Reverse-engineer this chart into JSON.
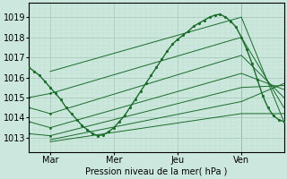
{
  "xlabel": "Pression niveau de la mer( hPa )",
  "background_color": "#cce8de",
  "grid_major_color": "#aaccbb",
  "grid_minor_color": "#bbddcc",
  "line_color": "#1a6b2a",
  "yticks": [
    1013,
    1014,
    1015,
    1016,
    1017,
    1018,
    1019
  ],
  "ylim": [
    1012.3,
    1019.7
  ],
  "xlim": [
    0,
    96
  ],
  "xtick_positions": [
    8,
    32,
    56,
    80
  ],
  "xtick_labels": [
    "Mar",
    "Mer",
    "Jeu",
    "Ven"
  ],
  "vline_x": 80,
  "main_line": {
    "points_x": [
      0,
      2,
      4,
      6,
      8,
      10,
      12,
      14,
      16,
      18,
      20,
      22,
      24,
      26,
      28,
      30,
      32,
      34,
      36,
      38,
      40,
      42,
      44,
      46,
      48,
      50,
      52,
      54,
      56,
      58,
      60,
      62,
      64,
      66,
      68,
      70,
      72,
      74,
      76,
      78,
      80,
      82,
      84,
      86,
      88,
      90,
      92,
      94,
      96
    ],
    "points_y": [
      1016.5,
      1016.3,
      1016.1,
      1015.8,
      1015.5,
      1015.2,
      1014.9,
      1014.5,
      1014.2,
      1013.9,
      1013.6,
      1013.4,
      1013.2,
      1013.1,
      1013.15,
      1013.3,
      1013.5,
      1013.8,
      1014.1,
      1014.5,
      1014.9,
      1015.3,
      1015.7,
      1016.1,
      1016.5,
      1016.9,
      1017.3,
      1017.65,
      1017.9,
      1018.1,
      1018.3,
      1018.55,
      1018.7,
      1018.85,
      1019.0,
      1019.1,
      1019.15,
      1019.0,
      1018.8,
      1018.5,
      1018.0,
      1017.4,
      1016.7,
      1015.9,
      1015.1,
      1014.5,
      1014.1,
      1013.9,
      1013.8
    ]
  },
  "fan_lines": [
    {
      "x": [
        8,
        80,
        96
      ],
      "y": [
        1016.3,
        1019.0,
        1013.8
      ]
    },
    {
      "x": [
        8,
        80,
        96
      ],
      "y": [
        1015.2,
        1018.0,
        1014.5
      ]
    },
    {
      "x": [
        8,
        80,
        96
      ],
      "y": [
        1014.2,
        1017.1,
        1015.0
      ]
    },
    {
      "x": [
        8,
        80,
        96
      ],
      "y": [
        1013.5,
        1016.2,
        1015.4
      ]
    },
    {
      "x": [
        8,
        80,
        96
      ],
      "y": [
        1013.1,
        1015.5,
        1015.6
      ]
    },
    {
      "x": [
        8,
        80,
        96
      ],
      "y": [
        1012.9,
        1014.8,
        1015.7
      ]
    },
    {
      "x": [
        8,
        80,
        96
      ],
      "y": [
        1012.8,
        1014.2,
        1014.2
      ]
    }
  ],
  "extra_dotted_lines": [
    {
      "x": [
        0,
        8
      ],
      "y": [
        1015.0,
        1015.2
      ]
    },
    {
      "x": [
        0,
        8
      ],
      "y": [
        1014.5,
        1014.2
      ]
    },
    {
      "x": [
        0,
        8
      ],
      "y": [
        1013.8,
        1013.5
      ]
    },
    {
      "x": [
        0,
        8
      ],
      "y": [
        1013.2,
        1013.1
      ]
    }
  ]
}
